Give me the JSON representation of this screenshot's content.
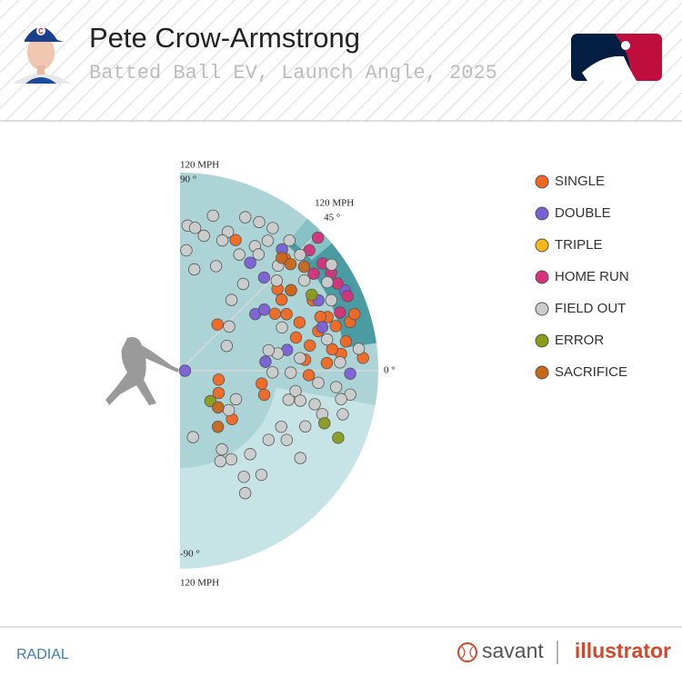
{
  "chart_data": {
    "type": "radial",
    "title": "Pete Crow-Armstrong",
    "subtitle": "Batted Ball EV, Launch Angle, 2025",
    "rlim": [
      0,
      120
    ],
    "r_label": {
      "value": 120,
      "label": "120 MPH"
    },
    "angle_lim": [
      -90,
      90
    ],
    "angle_ticks": [
      {
        "value": 90,
        "label": "90 °"
      },
      {
        "value": 45,
        "label": "45 °"
      },
      {
        "value": 0,
        "label": "0 °"
      },
      {
        "value": -90,
        "label": "-90 °"
      }
    ],
    "series": [
      {
        "name": "SINGLE",
        "color": "#f26722",
        "launch_angle": [
          51,
          -13,
          -30,
          -43,
          -9,
          -16,
          40,
          36,
          28,
          22,
          16,
          11,
          16,
          20,
          16,
          10,
          16,
          6,
          3,
          -2,
          4,
          31,
          47,
          67,
          35,
          28,
          18,
          8,
          5,
          21
        ],
        "exit_velocity": [
          36,
          24,
          27,
          43,
          50,
          53,
          77,
          83,
          73,
          78,
          73,
          80,
          87,
          95,
          98,
          102,
          107,
          98,
          89,
          78,
          111,
          67,
          93,
          86,
          75,
          91,
          111,
          93,
          76,
          91
        ]
      },
      {
        "name": "DOUBLE",
        "color": "#7b5fd6",
        "launch_angle": [
          0,
          57,
          48,
          37,
          6,
          50,
          17,
          26,
          -1,
          11,
          36,
          27
        ],
        "exit_velocity": [
          3,
          78,
          76,
          57,
          52,
          96,
          90,
          111,
          103,
          66,
          63,
          94
        ]
      },
      {
        "name": "TRIPLE",
        "color": "#f7b718",
        "launch_angle": [],
        "exit_velocity": []
      },
      {
        "name": "HOME RUN",
        "color": "#d6317a",
        "launch_angle": [
          43,
          37,
          33,
          29,
          24,
          44,
          20,
          36
        ],
        "exit_velocity": [
          107,
          108,
          109,
          109,
          111,
          116,
          103,
          100
        ]
      },
      {
        "name": "FIELD OUT",
        "color": "#cccccc",
        "launch_angle": [
          87,
          87,
          82,
          78,
          71,
          67,
          62,
          57,
          72,
          63,
          71,
          54,
          54,
          42,
          56,
          47,
          44,
          36,
          31,
          25,
          12,
          6,
          -1,
          10,
          13,
          -15,
          -10,
          -5,
          -6,
          -8,
          -15,
          -14,
          -24,
          -17,
          -29,
          -38,
          -33,
          -36,
          -50,
          -62,
          -60,
          -66,
          -79,
          -59,
          -52,
          -62,
          -39,
          -27,
          -1,
          23,
          3,
          7,
          -10,
          -14,
          35,
          43,
          80,
          84,
          59,
          28,
          56,
          50
        ],
        "exit_velocity": [
          88,
          73,
          62,
          96,
          89,
          101,
          102,
          103,
          83,
          79,
          67,
          65,
          53,
          40,
          95,
          87,
          101,
          93,
          104,
          101,
          91,
          73,
          67,
          60,
          55,
          68,
          71,
          84,
          95,
          104,
          102,
          84,
          83,
          90,
          70,
          68,
          77,
          90,
          66,
          54,
          62,
          60,
          41,
          75,
          80,
          84,
          38,
          38,
          56,
          67,
          97,
          109,
          99,
          75,
          112,
          80,
          83,
          87,
          88,
          32,
          85,
          103
        ]
      },
      {
        "name": "ERROR",
        "color": "#8b9b1a",
        "launch_angle": [
          -45,
          30,
          -20,
          -23
        ],
        "exit_velocity": [
          26,
          92,
          93,
          104
        ]
      },
      {
        "name": "SACRIFICE",
        "color": "#c8661a",
        "launch_angle": [
          -56,
          -44,
          48,
          44,
          40,
          36
        ],
        "exit_velocity": [
          41,
          32,
          92,
          93,
          98,
          83
        ]
      }
    ]
  },
  "footer": {
    "mode": "RADIAL",
    "brand": "savant",
    "product": "illustrator"
  }
}
